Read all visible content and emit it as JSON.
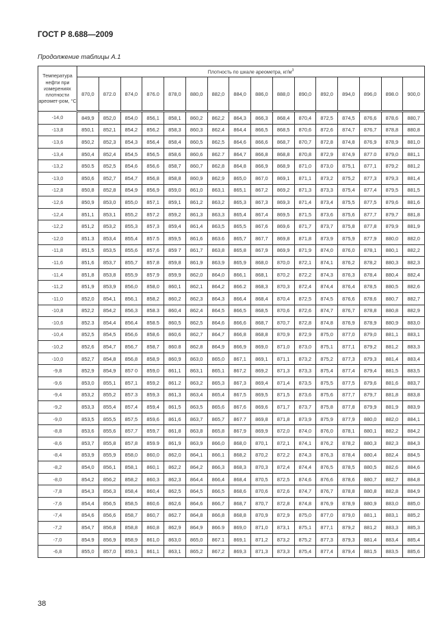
{
  "header": {
    "standard": "ГОСТ Р 8.688—2009",
    "caption": "Продолжение таблицы А.1"
  },
  "table": {
    "temp_header": "Температура нефти при измерениях плотности ареомет-ром, °С",
    "density_header": "Плотность по шкале ареометра, кг/м",
    "density_header_sup": "3",
    "columns": [
      "870,0",
      "872.0",
      "874,0",
      "876.0",
      "878,0",
      "880,0",
      "882,0",
      "884,0",
      "886,0",
      "888,0",
      "890,0",
      "892,0",
      "894,0",
      "896,0",
      "898.0",
      "900,0"
    ],
    "rows": [
      [
        "-14,0",
        "849,9",
        "852,0",
        "854,0",
        "856,1",
        "858,1",
        "860,2",
        "862,2",
        "864,3",
        "866,3",
        "868,4",
        "870,4",
        "872,5",
        "874,5",
        "876,6",
        "878,6",
        "880,7"
      ],
      [
        "-13,8",
        "850,1",
        "852,1",
        "854,2",
        "856,2",
        "858,3",
        "860,3",
        "862,4",
        "864,4",
        "866,5",
        "868,5",
        "870,6",
        "872,6",
        "874,7",
        "876,7",
        "878,8",
        "880,8"
      ],
      [
        "-13,6",
        "850,2",
        "852,3",
        "854,3",
        "856,4",
        "858,4",
        "860,5",
        "862,5",
        "864,6",
        "866,6",
        "868,7",
        "870,7",
        "872,8",
        "874,8",
        "876,9",
        "878,9",
        "881,0"
      ],
      [
        "-13,4",
        "850,4",
        "852,4",
        "854,5",
        "856,5",
        "858,6",
        "860,6",
        "862.7",
        "864,7",
        "866,8",
        "868,8",
        "870,8",
        "872,9",
        "874,9",
        "877.0",
        "879,0",
        "881,1"
      ],
      [
        "-13,2",
        "850.5",
        "852,5",
        "854,6",
        "856,6",
        "858,7",
        "860,7",
        "862,8",
        "864,8",
        "866,9",
        "868,9",
        "871,0",
        "873,0",
        "875,1",
        "877,1",
        "879,2",
        "881,2"
      ],
      [
        "-13,0",
        "850,6",
        "852,7",
        "854,7",
        "856,8",
        "858,8",
        "860,9",
        "862,9",
        "865,0",
        "867,0",
        "869,1",
        "871,1",
        "873,2",
        "875,2",
        "877,3",
        "879,3",
        "881,4"
      ],
      [
        "-12,8",
        "850,8",
        "852,8",
        "854,9",
        "856,9",
        "859,0",
        "861,0",
        "863,1",
        "865,1",
        "867,2",
        "869,2",
        "871,3",
        "873,3",
        "875,4",
        "877,4",
        "879,5",
        "881,5"
      ],
      [
        "-12,6",
        "850,9",
        "853,0",
        "855,0",
        "857,1",
        "859,1",
        "861,2",
        "863,2",
        "865,3",
        "867,3",
        "869,3",
        "871,4",
        "873,4",
        "875,5",
        "877,5",
        "879,6",
        "881,6"
      ],
      [
        "-12,4",
        "851,1",
        "853,1",
        "855,2",
        "857,2",
        "859,2",
        "861,3",
        "863,3",
        "865,4",
        "867,4",
        "869,5",
        "871,5",
        "873,6",
        "875,6",
        "877,7",
        "879,7",
        "881,8"
      ],
      [
        "-12,2",
        "851,2",
        "853,2",
        "855,3",
        "857,3",
        "859,4",
        "861,4",
        "863,5",
        "865,5",
        "867,6",
        "869,6",
        "871,7",
        "873,7",
        "875,8",
        "877,8",
        "879,9",
        "881,9"
      ],
      [
        "-12,0",
        "851.3",
        "853,4",
        "855,4",
        "857.5",
        "859,5",
        "861,6",
        "863.6",
        "865,7",
        "867,7",
        "869,8",
        "871,8",
        "873,9",
        "875,9",
        "877,9",
        "880,0",
        "882,0"
      ],
      [
        "-11,8",
        "851,5",
        "853,5",
        "855,6",
        "857,6",
        "859 7",
        "861,7",
        "863,8",
        "865,8",
        "867,9",
        "869,9",
        "871,9",
        "874,0",
        "876,0",
        "878,1",
        "880,1",
        "882,2"
      ],
      [
        "-11,6",
        "851,6",
        "853,7",
        "855,7",
        "857,8",
        "859,8",
        "861,9",
        "863,9",
        "865,9",
        "868,0",
        "870,0",
        "872,1",
        "874,1",
        "876,2",
        "878,2",
        "880,3",
        "882,3"
      ],
      [
        "-11,4",
        "851,8",
        "853,8",
        "855,9",
        "857,9",
        "859,9",
        "862,0",
        "864,0",
        "866,1",
        "868,1",
        "870,2",
        "872,2",
        "874,3",
        "876,3",
        "878,4",
        "880,4",
        "882,4"
      ],
      [
        "-11,2",
        "851,9",
        "853,9",
        "856,0",
        "858,0",
        "860,1",
        "862,1",
        "864,2",
        "866.2",
        "868,3",
        "870,3",
        "872,4",
        "874,4",
        "876,4",
        "878,5",
        "880,5",
        "882,6"
      ],
      [
        "-11,0",
        "852,0",
        "854,1",
        "856,1",
        "858,2",
        "860,2",
        "862,3",
        "864,3",
        "866,4",
        "868,4",
        "870,4",
        "872,5",
        "874,5",
        "876,6",
        "878,6",
        "880,7",
        "882,7"
      ],
      [
        "-10,8",
        "852,2",
        "854,2",
        "856,3",
        "858.3",
        "860,4",
        "862,4",
        "864,5",
        "866,5",
        "868,5",
        "870,6",
        "872,6",
        "874,7",
        "876,7",
        "878,8",
        "880,8",
        "882,9"
      ],
      [
        "-10,6",
        "852.3",
        "854,4",
        "856,4",
        "858.5",
        "860,5",
        "862,5",
        "864,6",
        "866,6",
        "868,7",
        "870,7",
        "872,8",
        "874,8",
        "876,9",
        "878,9",
        "880,9",
        "883,0"
      ],
      [
        "-10,4",
        "852,5",
        "854,5",
        "856,6",
        "858,6",
        "860,6",
        "862,7",
        "864,7",
        "866,8",
        "868,8",
        "870,9",
        "872,9",
        "875,0",
        "877,0",
        "879,0",
        "881,1",
        "883,1"
      ],
      [
        "-10,2",
        "852,6",
        "854,7",
        "856,7",
        "858,7",
        "860.8",
        "862,8",
        "864,9",
        "866,9",
        "869,0",
        "871,0",
        "873,0",
        "875,1",
        "877,1",
        "879,2",
        "881,2",
        "883,3"
      ],
      [
        "-10,0",
        "852,7",
        "854,8",
        "856,8",
        "858,9",
        "860,9",
        "863,0",
        "865,0",
        "867,1",
        "869,1",
        "871,1",
        "873,2",
        "875,2",
        "877,3",
        "879,3",
        "881,4",
        "883,4"
      ],
      [
        "-9,8",
        "852,9",
        "854,9",
        "857 0",
        "859,0",
        "861,1",
        "863,1",
        "865,1",
        "867,2",
        "869,2",
        "871,3",
        "873,3",
        "875,4",
        "877,4",
        "879,4",
        "881,5",
        "883,5"
      ],
      [
        "-9,6",
        "853,0",
        "855,1",
        "857,1",
        "859,2",
        "861.2",
        "863,2",
        "865,3",
        "867,3",
        "869,4",
        "871,4",
        "873,5",
        "875,5",
        "877,5",
        "879,6",
        "881,6",
        "883,7"
      ],
      [
        "-9,4",
        "853,2",
        "855,2",
        "857.3",
        "859,3",
        "861,3",
        "863,4",
        "865,4",
        "867,5",
        "869,5",
        "871,5",
        "873,6",
        "875,6",
        "877,7",
        "879,7",
        "881,8",
        "883,8"
      ],
      [
        "-9,2",
        "853,3",
        "855,4",
        "857,4",
        "859,4",
        "861,5",
        "863,5",
        "865,6",
        "867,6",
        "869,6",
        "871,7",
        "873,7",
        "875,8",
        "877,8",
        "879,9",
        "881,9",
        "883,9"
      ],
      [
        "-9,0",
        "853,5",
        "855,5",
        "857,5",
        "859,6",
        "861,6",
        "863,7",
        "865,7",
        "867.7",
        "869,8",
        "871,8",
        "873,9",
        "875,9",
        "877,9",
        "880,0",
        "882,0",
        "884,1"
      ],
      [
        "-8,8",
        "853,6",
        "855,6",
        "857,7",
        "859,7",
        "861,8",
        "863,8",
        "865,8",
        "867,9",
        "869,9",
        "872,0",
        "874,0",
        "876,0",
        "878,1",
        "880,1",
        "882,2",
        "884,2"
      ],
      [
        "-8,6",
        "853,7",
        "855,8",
        "857,8",
        "859.9",
        "861,9",
        "863,9",
        "866,0",
        "868,0",
        "870,1",
        "872,1",
        "874,1",
        "876,2",
        "878,2",
        "880,3",
        "882,3",
        "884,3"
      ],
      [
        "-8,4",
        "853,9",
        "855,9",
        "858,0",
        "860,0",
        "862,0",
        "864,1",
        "866,1",
        "868,2",
        "870,2",
        "872,2",
        "874,3",
        "876,3",
        "878,4",
        "880,4",
        "882,4",
        "884,5"
      ],
      [
        "-8,2",
        "854,0",
        "856,1",
        "858,1",
        "860,1",
        "862,2",
        "864,2",
        "866,3",
        "868,3",
        "870,3",
        "872,4",
        "874,4",
        "876,5",
        "878,5",
        "880,5",
        "882,6",
        "884,6"
      ],
      [
        "-8,0",
        "854,2",
        "856,2",
        "858,2",
        "860,3",
        "862,3",
        "864,4",
        "866,4",
        "868,4",
        "870,5",
        "872,5",
        "874,6",
        "876,6",
        "878,6",
        "880,7",
        "882,7",
        "884,8"
      ],
      [
        "-7,8",
        "854,3",
        "856,3",
        "858,4",
        "860,4",
        "862,5",
        "864,5",
        "866,5",
        "868,6",
        "870,6",
        "872,6",
        "874,7",
        "876,7",
        "878,8",
        "880,8",
        "882,8",
        "884,9"
      ],
      [
        "-7,6",
        "854,4",
        "856,5",
        "858,5",
        "860,6",
        "862,6",
        "864,6",
        "866,7",
        "868,7",
        "870,7",
        "872,8",
        "874,8",
        "876,9",
        "878,9",
        "880,9",
        "883,0",
        "885,0"
      ],
      [
        "-7,4",
        "854,6",
        "856,6",
        "858,7",
        "860,7",
        "862.7",
        "864,8",
        "866,8",
        "868,8",
        "870,9",
        "872,9",
        "875,0",
        "877,0",
        "879,0",
        "881,1",
        "883,1",
        "885,2"
      ],
      [
        "-7,2",
        "854,7",
        "856,8",
        "858,8",
        "860,8",
        "862,9",
        "864,9",
        "866.9",
        "869,0",
        "871,0",
        "873,1",
        "875,1",
        "877,1",
        "879,2",
        "881,2",
        "883,3",
        "885,3"
      ],
      [
        "-7,0",
        "854.9",
        "856,9",
        "858,9",
        "861,0",
        "863,0",
        "865,0",
        "867.1",
        "869,1",
        "871,2",
        "873,2",
        "875,2",
        "877,3",
        "879,3",
        "881,4",
        "883,4",
        "885,4"
      ],
      [
        "-6,8",
        "855,0",
        "857,0",
        "859,1",
        "861,1",
        "863,1",
        "865,2",
        "867,2",
        "869,3",
        "871,3",
        "873,3",
        "875,4",
        "877,4",
        "879,4",
        "881,5",
        "883,5",
        "885,6"
      ]
    ]
  },
  "footer": {
    "page_number": "38"
  }
}
